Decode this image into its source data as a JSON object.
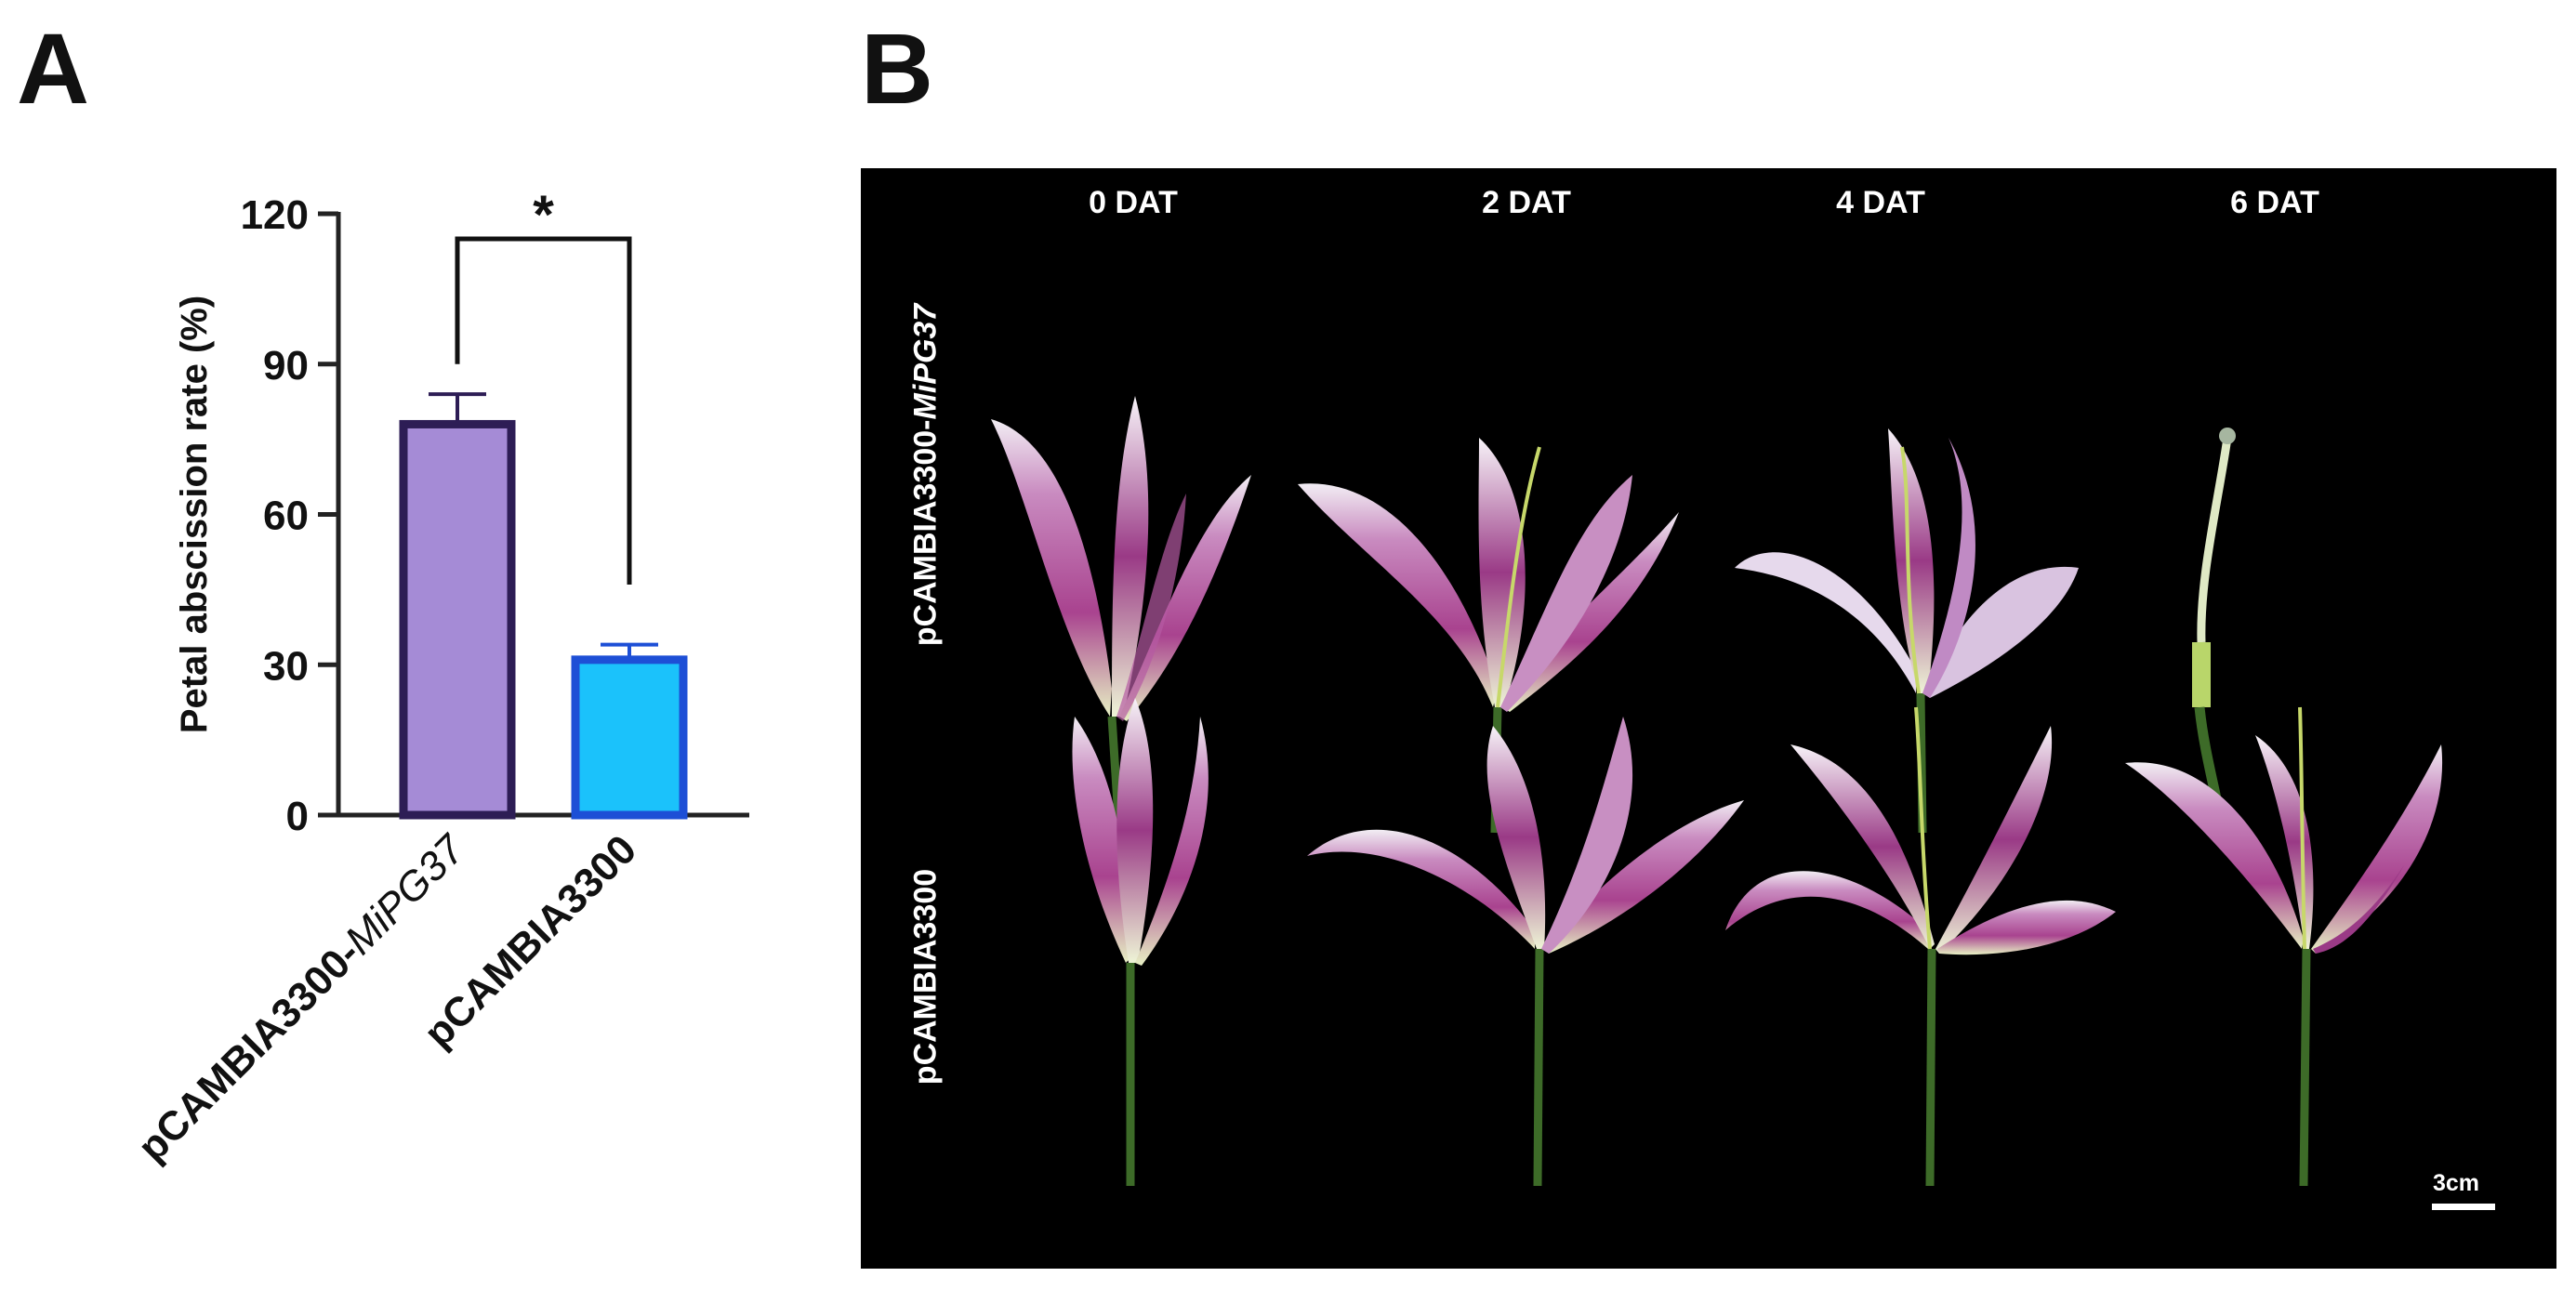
{
  "panel_a_label": "A",
  "panel_b_label": "B",
  "chart_data": {
    "type": "bar",
    "categories": [
      "pCAMBIA3300-MiPG37",
      "pCAMBIA3300"
    ],
    "category_parts": [
      {
        "plain": "pCAMBIA3300-",
        "italic": "MiPG37"
      },
      {
        "plain": "pCAMBIA3300",
        "italic": ""
      }
    ],
    "values": [
      78,
      31
    ],
    "errors": [
      6,
      3
    ],
    "bar_fill_colors": [
      "#a58bd6",
      "#1bc2fb"
    ],
    "bar_edge_colors": [
      "#2d1d55",
      "#1d4fd6"
    ],
    "ylabel": "Petal abscission rate (%)",
    "ylim": [
      0,
      120
    ],
    "yticks": [
      0,
      30,
      60,
      90,
      120
    ],
    "significance": "*",
    "grid": false
  },
  "photo_panel": {
    "columns": [
      "0 DAT",
      "2 DAT",
      "4 DAT",
      "6 DAT"
    ],
    "rows": [
      {
        "plain": "pCAMBIA3300-",
        "italic": "MiPG37"
      },
      {
        "plain": "pCAMBIA3300",
        "italic": ""
      }
    ],
    "scale_bar_label": "3cm",
    "background": "#000000"
  }
}
